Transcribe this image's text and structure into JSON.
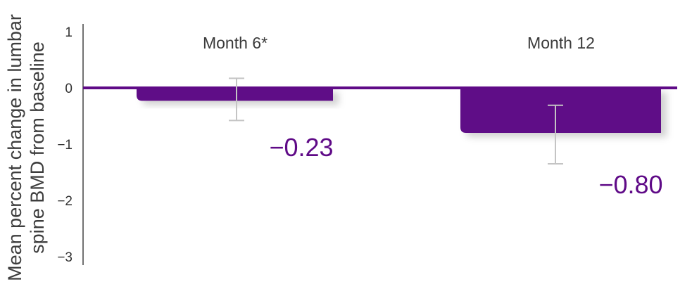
{
  "chart_data": {
    "type": "bar",
    "ylabel": [
      "Mean percent change in lumbar",
      "spine BMD from baseline"
    ],
    "categories": [
      "Month 6*",
      "Month 12"
    ],
    "values": [
      -0.23,
      -0.8
    ],
    "value_labels": [
      "−0.23",
      "−0.80"
    ],
    "error_bars": [
      {
        "low": -0.58,
        "high": 0.17
      },
      {
        "low": -1.35,
        "high": -0.31
      }
    ],
    "yticks": [
      1,
      0,
      -1,
      -2,
      -3
    ],
    "ytick_labels": [
      "1",
      "0",
      "−1",
      "−2",
      "−3"
    ],
    "ylim": [
      -3,
      1
    ],
    "grid": false,
    "legend": "none",
    "colors": {
      "bar": "#5f0a87",
      "baseline": "#5f0a87",
      "error_bar": "#c4c4c4",
      "value_label": "#5f0a87",
      "axis": "#444444"
    }
  }
}
